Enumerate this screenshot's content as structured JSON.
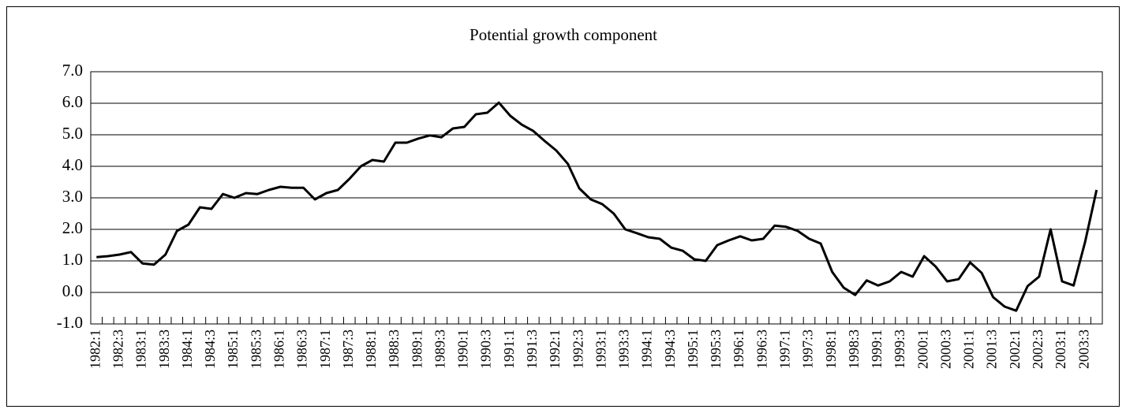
{
  "chart_data": {
    "type": "line",
    "title": "Potential growth component",
    "categories": [
      "1982:1",
      null,
      "1982:3",
      null,
      "1983:1",
      null,
      "1983:3",
      null,
      "1984:1",
      null,
      "1984:3",
      null,
      "1985:1",
      null,
      "1985:3",
      null,
      "1986:1",
      null,
      "1986:3",
      null,
      "1987:1",
      null,
      "1987:3",
      null,
      "1988:1",
      null,
      "1988:3",
      null,
      "1989:1",
      null,
      "1989:3",
      null,
      "1990:1",
      null,
      "1990:3",
      null,
      "1991:1",
      null,
      "1991:3",
      null,
      "1992:1",
      null,
      "1992:3",
      null,
      "1993:1",
      null,
      "1993:3",
      null,
      "1994:1",
      null,
      "1994:3",
      null,
      "1995:1",
      null,
      "1995:3",
      null,
      "1996:1",
      null,
      "1996:3",
      null,
      "1997:1",
      null,
      "1997:3",
      null,
      "1998:1",
      null,
      "1998:3",
      null,
      "1999:1",
      null,
      "1999:3",
      null,
      "2000:1",
      null,
      "2000:3",
      null,
      "2001:1",
      null,
      "2001:3",
      null,
      "2002:1",
      null,
      "2002:3",
      null,
      "2003:1",
      null,
      "2003:3",
      null
    ],
    "values": [
      1.12,
      1.15,
      1.2,
      1.28,
      0.92,
      0.88,
      1.2,
      1.95,
      2.15,
      2.7,
      2.65,
      3.12,
      3.0,
      3.15,
      3.12,
      3.25,
      3.35,
      3.32,
      3.32,
      2.95,
      3.15,
      3.25,
      3.6,
      4.0,
      4.2,
      4.15,
      4.75,
      4.75,
      4.88,
      4.98,
      4.92,
      5.2,
      5.25,
      5.65,
      5.7,
      6.02,
      5.6,
      5.32,
      5.12,
      4.8,
      4.5,
      4.08,
      3.3,
      2.95,
      2.8,
      2.5,
      2.0,
      1.88,
      1.75,
      1.7,
      1.42,
      1.32,
      1.05,
      1.0,
      1.5,
      1.65,
      1.78,
      1.65,
      1.7,
      2.12,
      2.08,
      1.95,
      1.7,
      1.55,
      0.65,
      0.15,
      -0.08,
      0.38,
      0.22,
      0.35,
      0.65,
      0.5,
      1.15,
      0.82,
      0.35,
      0.42,
      0.95,
      0.62,
      -0.15,
      -0.45,
      -0.58,
      0.2,
      0.5,
      2.0,
      0.35,
      0.22,
      1.6,
      3.25
    ],
    "color": "#000000",
    "ylim": [
      -1,
      7
    ],
    "yticks": [
      {
        "value": -1,
        "label": "-1.0"
      },
      {
        "value": 0,
        "label": "0.0"
      },
      {
        "value": 1,
        "label": "1.0"
      },
      {
        "value": 2,
        "label": "2.0"
      },
      {
        "value": 3,
        "label": "3.0"
      },
      {
        "value": 4,
        "label": "4.0"
      },
      {
        "value": 5,
        "label": "5.0"
      },
      {
        "value": 6,
        "label": "6.0"
      },
      {
        "value": 7,
        "label": "7.0"
      }
    ],
    "grid": true
  }
}
